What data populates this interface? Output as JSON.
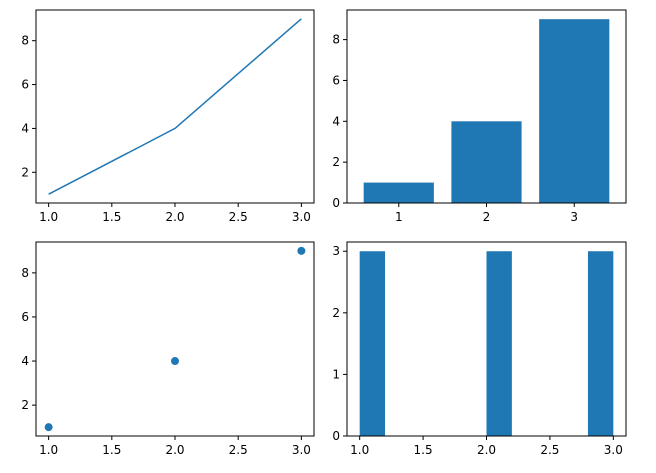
{
  "chart_data": [
    {
      "type": "line",
      "x": [
        1,
        2,
        3
      ],
      "y": [
        1,
        4,
        9
      ],
      "xlim": [
        0.9,
        3.1
      ],
      "ylim": [
        0.6,
        9.4
      ],
      "xticks": [
        1.0,
        1.5,
        2.0,
        2.5,
        3.0
      ],
      "xtick_labels": [
        "1.0",
        "1.5",
        "2.0",
        "2.5",
        "3.0"
      ],
      "yticks": [
        2,
        4,
        6,
        8
      ],
      "ytick_labels": [
        "2",
        "4",
        "6",
        "8"
      ],
      "color": "#1f77b4",
      "grid": false
    },
    {
      "type": "bar",
      "categories": [
        "1",
        "2",
        "3"
      ],
      "x": [
        1,
        2,
        3
      ],
      "values": [
        1,
        4,
        9
      ],
      "xlim": [
        0.41,
        3.59
      ],
      "ylim": [
        0,
        9.45
      ],
      "xticks": [
        1,
        2,
        3
      ],
      "xtick_labels": [
        "1",
        "2",
        "3"
      ],
      "yticks": [
        0,
        2,
        4,
        6,
        8
      ],
      "ytick_labels": [
        "0",
        "2",
        "4",
        "6",
        "8"
      ],
      "color": "#1f77b4",
      "grid": false
    },
    {
      "type": "scatter",
      "x": [
        1,
        2,
        3
      ],
      "y": [
        1,
        4,
        9
      ],
      "xlim": [
        0.9,
        3.1
      ],
      "ylim": [
        0.6,
        9.4
      ],
      "xticks": [
        1.0,
        1.5,
        2.0,
        2.5,
        3.0
      ],
      "xtick_labels": [
        "1.0",
        "1.5",
        "2.0",
        "2.5",
        "3.0"
      ],
      "yticks": [
        2,
        4,
        6,
        8
      ],
      "ytick_labels": [
        "2",
        "4",
        "6",
        "8"
      ],
      "color": "#1f77b4",
      "grid": false
    },
    {
      "type": "histogram",
      "bins": [
        {
          "start": 1.0,
          "end": 1.2,
          "count": 3
        },
        {
          "start": 1.2,
          "end": 1.4,
          "count": 0
        },
        {
          "start": 1.4,
          "end": 1.6,
          "count": 0
        },
        {
          "start": 1.6,
          "end": 1.8,
          "count": 0
        },
        {
          "start": 1.8,
          "end": 2.0,
          "count": 0
        },
        {
          "start": 2.0,
          "end": 2.2,
          "count": 3
        },
        {
          "start": 2.2,
          "end": 2.4,
          "count": 0
        },
        {
          "start": 2.4,
          "end": 2.6,
          "count": 0
        },
        {
          "start": 2.6,
          "end": 2.8,
          "count": 0
        },
        {
          "start": 2.8,
          "end": 3.0,
          "count": 3
        }
      ],
      "xlim": [
        0.9,
        3.1
      ],
      "ylim": [
        0,
        3.15
      ],
      "xticks": [
        1.0,
        1.5,
        2.0,
        2.5,
        3.0
      ],
      "xtick_labels": [
        "1.0",
        "1.5",
        "2.0",
        "2.5",
        "3.0"
      ],
      "yticks": [
        0,
        1,
        2,
        3
      ],
      "ytick_labels": [
        "0",
        "1",
        "2",
        "3"
      ],
      "color": "#1f77b4",
      "grid": false
    }
  ]
}
